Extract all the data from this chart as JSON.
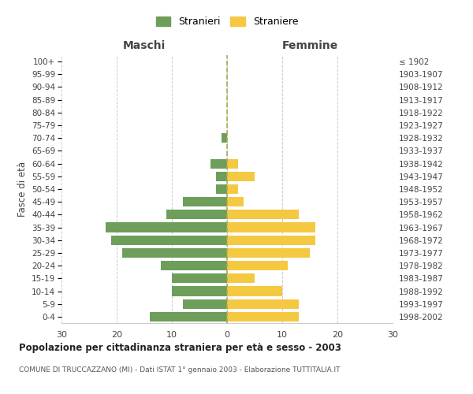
{
  "age_groups": [
    "0-4",
    "5-9",
    "10-14",
    "15-19",
    "20-24",
    "25-29",
    "30-34",
    "35-39",
    "40-44",
    "45-49",
    "50-54",
    "55-59",
    "60-64",
    "65-69",
    "70-74",
    "75-79",
    "80-84",
    "85-89",
    "90-94",
    "95-99",
    "100+"
  ],
  "birth_years": [
    "1998-2002",
    "1993-1997",
    "1988-1992",
    "1983-1987",
    "1978-1982",
    "1973-1977",
    "1968-1972",
    "1963-1967",
    "1958-1962",
    "1953-1957",
    "1948-1952",
    "1943-1947",
    "1938-1942",
    "1933-1937",
    "1928-1932",
    "1923-1927",
    "1918-1922",
    "1913-1917",
    "1908-1912",
    "1903-1907",
    "≤ 1902"
  ],
  "males": [
    14,
    8,
    10,
    10,
    12,
    19,
    21,
    22,
    11,
    8,
    2,
    2,
    3,
    0,
    1,
    0,
    0,
    0,
    0,
    0,
    0
  ],
  "females": [
    13,
    13,
    10,
    5,
    11,
    15,
    16,
    16,
    13,
    3,
    2,
    5,
    2,
    0,
    0,
    0,
    0,
    0,
    0,
    0,
    0
  ],
  "male_color": "#6d9e5a",
  "female_color": "#f5c842",
  "male_label": "Stranieri",
  "female_label": "Straniere",
  "title": "Popolazione per cittadinanza straniera per età e sesso - 2003",
  "subtitle": "COMUNE DI TRUCCAZZANO (MI) - Dati ISTAT 1° gennaio 2003 - Elaborazione TUTTITALIA.IT",
  "xlabel_left": "Maschi",
  "xlabel_right": "Femmine",
  "ylabel_left": "Fasce di età",
  "xlim": 30,
  "background_color": "#ffffff",
  "grid_color": "#cccccc"
}
